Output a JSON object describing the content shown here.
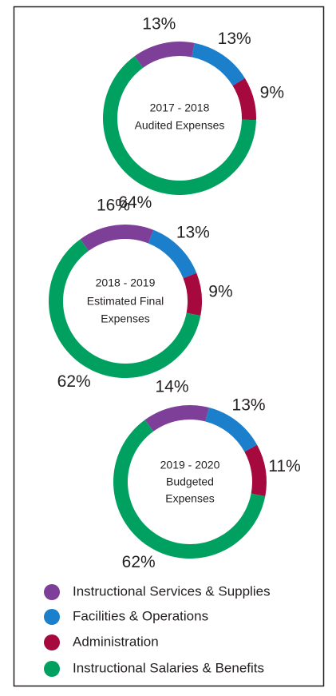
{
  "legend": [
    {
      "name": "Instructional Services & Supplies",
      "color": "#7d3f98"
    },
    {
      "name": "Facilities & Operations",
      "color": "#1b7fcc"
    },
    {
      "name": "Administration",
      "color": "#a6093d"
    },
    {
      "name": "Instructional Salaries & Benefits",
      "color": "#00a160"
    }
  ],
  "chart_data": [
    {
      "type": "pie",
      "title": [
        "2017 - 2018",
        "Audited Expenses"
      ],
      "values": [
        13,
        13,
        9,
        64
      ],
      "value_labels": [
        "13%",
        "13%",
        "9%",
        "64%"
      ]
    },
    {
      "type": "pie",
      "title": [
        "2018 - 2019",
        "Estimated Final",
        "Expenses"
      ],
      "values": [
        16,
        13,
        9,
        62
      ],
      "value_labels": [
        "16%",
        "13%",
        "9%",
        "62%"
      ]
    },
    {
      "type": "pie",
      "title": [
        "2019 - 2020",
        "Budgeted",
        "Expenses"
      ],
      "values": [
        14,
        13,
        11,
        62
      ],
      "value_labels": [
        "14%",
        "13%",
        "11%",
        "62%"
      ]
    }
  ]
}
